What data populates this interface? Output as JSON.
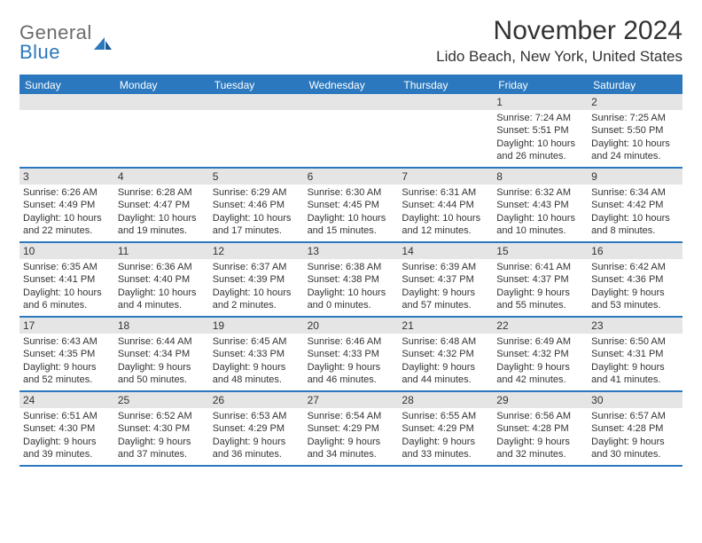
{
  "brand": {
    "line1": "General",
    "line2": "Blue",
    "color_general": "#6b6b6b",
    "color_blue": "#2b78bf"
  },
  "title": "November 2024",
  "location": "Lido Beach, New York, United States",
  "colors": {
    "header_bg": "#2b78bf",
    "header_text": "#ffffff",
    "daynum_bg": "#e5e5e5",
    "border": "#2b78bf",
    "text": "#333333",
    "background": "#ffffff"
  },
  "typography": {
    "title_fontsize": 30,
    "location_fontsize": 17,
    "dayheader_fontsize": 12,
    "daynum_fontsize": 12,
    "info_fontsize": 11
  },
  "day_headers": [
    "Sunday",
    "Monday",
    "Tuesday",
    "Wednesday",
    "Thursday",
    "Friday",
    "Saturday"
  ],
  "weeks": [
    [
      {
        "num": "",
        "sunrise": "",
        "sunset": "",
        "daylight": ""
      },
      {
        "num": "",
        "sunrise": "",
        "sunset": "",
        "daylight": ""
      },
      {
        "num": "",
        "sunrise": "",
        "sunset": "",
        "daylight": ""
      },
      {
        "num": "",
        "sunrise": "",
        "sunset": "",
        "daylight": ""
      },
      {
        "num": "",
        "sunrise": "",
        "sunset": "",
        "daylight": ""
      },
      {
        "num": "1",
        "sunrise": "Sunrise: 7:24 AM",
        "sunset": "Sunset: 5:51 PM",
        "daylight": "Daylight: 10 hours and 26 minutes."
      },
      {
        "num": "2",
        "sunrise": "Sunrise: 7:25 AM",
        "sunset": "Sunset: 5:50 PM",
        "daylight": "Daylight: 10 hours and 24 minutes."
      }
    ],
    [
      {
        "num": "3",
        "sunrise": "Sunrise: 6:26 AM",
        "sunset": "Sunset: 4:49 PM",
        "daylight": "Daylight: 10 hours and 22 minutes."
      },
      {
        "num": "4",
        "sunrise": "Sunrise: 6:28 AM",
        "sunset": "Sunset: 4:47 PM",
        "daylight": "Daylight: 10 hours and 19 minutes."
      },
      {
        "num": "5",
        "sunrise": "Sunrise: 6:29 AM",
        "sunset": "Sunset: 4:46 PM",
        "daylight": "Daylight: 10 hours and 17 minutes."
      },
      {
        "num": "6",
        "sunrise": "Sunrise: 6:30 AM",
        "sunset": "Sunset: 4:45 PM",
        "daylight": "Daylight: 10 hours and 15 minutes."
      },
      {
        "num": "7",
        "sunrise": "Sunrise: 6:31 AM",
        "sunset": "Sunset: 4:44 PM",
        "daylight": "Daylight: 10 hours and 12 minutes."
      },
      {
        "num": "8",
        "sunrise": "Sunrise: 6:32 AM",
        "sunset": "Sunset: 4:43 PM",
        "daylight": "Daylight: 10 hours and 10 minutes."
      },
      {
        "num": "9",
        "sunrise": "Sunrise: 6:34 AM",
        "sunset": "Sunset: 4:42 PM",
        "daylight": "Daylight: 10 hours and 8 minutes."
      }
    ],
    [
      {
        "num": "10",
        "sunrise": "Sunrise: 6:35 AM",
        "sunset": "Sunset: 4:41 PM",
        "daylight": "Daylight: 10 hours and 6 minutes."
      },
      {
        "num": "11",
        "sunrise": "Sunrise: 6:36 AM",
        "sunset": "Sunset: 4:40 PM",
        "daylight": "Daylight: 10 hours and 4 minutes."
      },
      {
        "num": "12",
        "sunrise": "Sunrise: 6:37 AM",
        "sunset": "Sunset: 4:39 PM",
        "daylight": "Daylight: 10 hours and 2 minutes."
      },
      {
        "num": "13",
        "sunrise": "Sunrise: 6:38 AM",
        "sunset": "Sunset: 4:38 PM",
        "daylight": "Daylight: 10 hours and 0 minutes."
      },
      {
        "num": "14",
        "sunrise": "Sunrise: 6:39 AM",
        "sunset": "Sunset: 4:37 PM",
        "daylight": "Daylight: 9 hours and 57 minutes."
      },
      {
        "num": "15",
        "sunrise": "Sunrise: 6:41 AM",
        "sunset": "Sunset: 4:37 PM",
        "daylight": "Daylight: 9 hours and 55 minutes."
      },
      {
        "num": "16",
        "sunrise": "Sunrise: 6:42 AM",
        "sunset": "Sunset: 4:36 PM",
        "daylight": "Daylight: 9 hours and 53 minutes."
      }
    ],
    [
      {
        "num": "17",
        "sunrise": "Sunrise: 6:43 AM",
        "sunset": "Sunset: 4:35 PM",
        "daylight": "Daylight: 9 hours and 52 minutes."
      },
      {
        "num": "18",
        "sunrise": "Sunrise: 6:44 AM",
        "sunset": "Sunset: 4:34 PM",
        "daylight": "Daylight: 9 hours and 50 minutes."
      },
      {
        "num": "19",
        "sunrise": "Sunrise: 6:45 AM",
        "sunset": "Sunset: 4:33 PM",
        "daylight": "Daylight: 9 hours and 48 minutes."
      },
      {
        "num": "20",
        "sunrise": "Sunrise: 6:46 AM",
        "sunset": "Sunset: 4:33 PM",
        "daylight": "Daylight: 9 hours and 46 minutes."
      },
      {
        "num": "21",
        "sunrise": "Sunrise: 6:48 AM",
        "sunset": "Sunset: 4:32 PM",
        "daylight": "Daylight: 9 hours and 44 minutes."
      },
      {
        "num": "22",
        "sunrise": "Sunrise: 6:49 AM",
        "sunset": "Sunset: 4:32 PM",
        "daylight": "Daylight: 9 hours and 42 minutes."
      },
      {
        "num": "23",
        "sunrise": "Sunrise: 6:50 AM",
        "sunset": "Sunset: 4:31 PM",
        "daylight": "Daylight: 9 hours and 41 minutes."
      }
    ],
    [
      {
        "num": "24",
        "sunrise": "Sunrise: 6:51 AM",
        "sunset": "Sunset: 4:30 PM",
        "daylight": "Daylight: 9 hours and 39 minutes."
      },
      {
        "num": "25",
        "sunrise": "Sunrise: 6:52 AM",
        "sunset": "Sunset: 4:30 PM",
        "daylight": "Daylight: 9 hours and 37 minutes."
      },
      {
        "num": "26",
        "sunrise": "Sunrise: 6:53 AM",
        "sunset": "Sunset: 4:29 PM",
        "daylight": "Daylight: 9 hours and 36 minutes."
      },
      {
        "num": "27",
        "sunrise": "Sunrise: 6:54 AM",
        "sunset": "Sunset: 4:29 PM",
        "daylight": "Daylight: 9 hours and 34 minutes."
      },
      {
        "num": "28",
        "sunrise": "Sunrise: 6:55 AM",
        "sunset": "Sunset: 4:29 PM",
        "daylight": "Daylight: 9 hours and 33 minutes."
      },
      {
        "num": "29",
        "sunrise": "Sunrise: 6:56 AM",
        "sunset": "Sunset: 4:28 PM",
        "daylight": "Daylight: 9 hours and 32 minutes."
      },
      {
        "num": "30",
        "sunrise": "Sunrise: 6:57 AM",
        "sunset": "Sunset: 4:28 PM",
        "daylight": "Daylight: 9 hours and 30 minutes."
      }
    ]
  ]
}
